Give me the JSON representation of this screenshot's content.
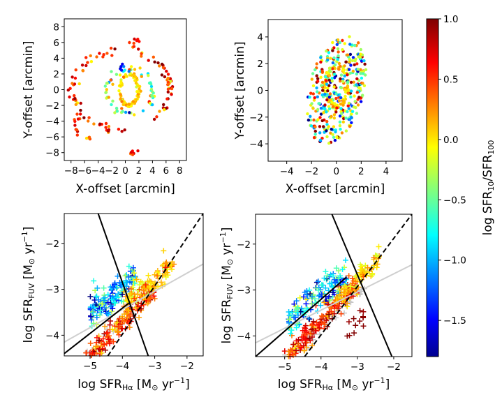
{
  "chart_data": [
    {
      "id": "p1",
      "type": "scatter",
      "xlabel": "X-offset [arcmin]",
      "ylabel": "Y-offset [arcmin]",
      "xlim": [
        -9,
        9
      ],
      "ylim": [
        -9,
        9
      ],
      "xticks": [
        -8,
        -6,
        -4,
        -2,
        0,
        2,
        4,
        6,
        8
      ],
      "yticks": [
        -8,
        -6,
        -4,
        -2,
        0,
        2,
        4,
        6,
        8
      ],
      "color_key": "log SFR10/SFR100",
      "groups": [
        {
          "shape": "ring",
          "cx": 0.6,
          "cy": 0,
          "rx": 1.4,
          "ry": 2.0,
          "n": 80,
          "c": 0.05,
          "cspread": 0.12,
          "jitter": 0.25
        },
        {
          "shape": "ring",
          "cx": 0.8,
          "cy": -0.2,
          "rx": 3.3,
          "ry": 2.8,
          "n": 60,
          "c": -0.4,
          "cspread": 0.55,
          "jitter": 0.5
        },
        {
          "shape": "arc",
          "cx": 0,
          "cy": 0,
          "rx": 7.6,
          "ry": 5.2,
          "a0": 100,
          "a1": 270,
          "n": 55,
          "c": 0.55,
          "cspread": 0.25,
          "jitter": 0.6
        },
        {
          "shape": "arc",
          "cx": 0,
          "cy": 0,
          "rx": 6.6,
          "ry": 4.8,
          "a0": -60,
          "a1": 70,
          "n": 45,
          "c": 0.5,
          "cspread": 0.35,
          "jitter": 0.6
        },
        {
          "shape": "blob",
          "cx": 1.4,
          "cy": 6.1,
          "sx": 0.35,
          "sy": 0.3,
          "n": 8,
          "c": 0.6,
          "cspread": 0.15
        },
        {
          "shape": "blob",
          "cx": 1.2,
          "cy": -8.0,
          "sx": 0.3,
          "sy": 0.15,
          "n": 6,
          "c": 0.6,
          "cspread": 0.1
        },
        {
          "shape": "blob",
          "cx": -7.3,
          "cy": -4.6,
          "sx": 0.3,
          "sy": 0.5,
          "n": 9,
          "c": 0.6,
          "cspread": 0.1
        },
        {
          "shape": "blob",
          "cx": -5.5,
          "cy": -6.2,
          "sx": 0.2,
          "sy": 0.15,
          "n": 4,
          "c": 0.5,
          "cspread": 0.3
        },
        {
          "shape": "blob",
          "cx": -0.3,
          "cy": 2.8,
          "sx": 0.4,
          "sy": 0.3,
          "n": 6,
          "c": -1.3,
          "cspread": 0.2
        }
      ]
    },
    {
      "id": "p2",
      "type": "scatter",
      "xlabel": "X-offset [arcmin]",
      "ylabel": "Y-offset [arcmin]",
      "xlim": [
        -5.5,
        5.3
      ],
      "ylim": [
        -5.3,
        5.3
      ],
      "xticks": [
        -4,
        -2,
        0,
        2,
        4
      ],
      "yticks": [
        -4,
        -2,
        0,
        2,
        4
      ],
      "color_key": "log SFR10/SFR100",
      "groups": [
        {
          "shape": "ring",
          "cx": 0.0,
          "cy": 0.3,
          "rx": 0.9,
          "ry": 1.5,
          "n": 70,
          "c": 0.05,
          "cspread": 0.15,
          "jitter": 0.22
        },
        {
          "shape": "fill",
          "cx": 0.0,
          "cy": 0.0,
          "rx": 2.2,
          "ry": 4.2,
          "rot": -15,
          "n": 380,
          "c": -0.2,
          "cspread": 0.75
        }
      ]
    },
    {
      "id": "p3",
      "type": "scatter",
      "xlabel": "log SFRHα [M⊙ yr−1]",
      "ylabel": "log SFRFUV [M⊙ yr−1]",
      "xlim": [
        -5.8,
        -1.5
      ],
      "ylim": [
        -4.45,
        -1.35
      ],
      "xticks": [
        -5,
        -4,
        -3,
        -2
      ],
      "yticks": [
        -4,
        -3,
        -2
      ],
      "gray_fit": {
        "x": [
          -5.8,
          -1.5
        ],
        "y": [
          -4.15,
          -2.45
        ]
      },
      "dashed_line": {
        "x": [
          -4.45,
          -1.5
        ],
        "y": [
          -4.45,
          -1.35
        ]
      },
      "line_a": {
        "x": [
          -5.8,
          -3.8
        ],
        "y": [
          -4.4,
          -3.3
        ]
      },
      "line_b": {
        "x": [
          -4.75,
          -3.2
        ],
        "y": [
          -1.35,
          -4.45
        ]
      },
      "groups": [
        {
          "shape": "band",
          "x0": -5.3,
          "x1": -3.0,
          "slope": 0.75,
          "x_ref": -3.8,
          "y_ref": -3.55,
          "width": 0.28,
          "n": 170,
          "c": 0.55,
          "cspread": 0.25
        },
        {
          "shape": "band",
          "x0": -5.0,
          "x1": -3.6,
          "slope": 0.6,
          "x_ref": -4.3,
          "y_ref": -3.15,
          "width": 0.35,
          "n": 150,
          "c": -0.9,
          "cspread": 0.45
        },
        {
          "shape": "band",
          "x0": -3.9,
          "x1": -2.4,
          "slope": 0.55,
          "x_ref": -3.2,
          "y_ref": -2.9,
          "width": 0.25,
          "n": 110,
          "c": 0.1,
          "cspread": 0.2
        },
        {
          "shape": "band",
          "x0": -5.5,
          "x1": -2.8,
          "slope": 0.7,
          "x_ref": -4.2,
          "y_ref": -3.85,
          "width": 0.15,
          "n": 40,
          "c": "gray",
          "cspread": 0
        }
      ]
    },
    {
      "id": "p4",
      "type": "scatter",
      "xlabel": "log SFRHα [M⊙ yr−1]",
      "ylabel": "log SFRFUV [M⊙ yr−1]",
      "xlim": [
        -5.8,
        -1.5
      ],
      "ylim": [
        -4.45,
        -1.35
      ],
      "xticks": [
        -5,
        -4,
        -3,
        -2
      ],
      "yticks": [
        -4,
        -3,
        -2
      ],
      "gray_fit": {
        "x": [
          -5.8,
          -1.5
        ],
        "y": [
          -4.15,
          -2.45
        ]
      },
      "dashed_line": {
        "x": [
          -4.45,
          -1.5
        ],
        "y": [
          -4.45,
          -1.35
        ]
      },
      "line_a": {
        "x": [
          -5.8,
          -3.3
        ],
        "y": [
          -4.45,
          -2.72
        ]
      },
      "line_b": {
        "x": [
          -3.7,
          -2.05
        ],
        "y": [
          -1.35,
          -4.45
        ]
      },
      "groups": [
        {
          "shape": "band",
          "x0": -5.0,
          "x1": -3.0,
          "slope": 0.75,
          "x_ref": -4.0,
          "y_ref": -3.7,
          "width": 0.25,
          "n": 170,
          "c": 0.55,
          "cspread": 0.25
        },
        {
          "shape": "band",
          "x0": -4.9,
          "x1": -3.3,
          "slope": 0.6,
          "x_ref": -4.1,
          "y_ref": -3.15,
          "width": 0.35,
          "n": 150,
          "c": -0.9,
          "cspread": 0.45
        },
        {
          "shape": "band",
          "x0": -3.6,
          "x1": -2.4,
          "slope": 0.7,
          "x_ref": -3.0,
          "y_ref": -2.75,
          "width": 0.22,
          "n": 90,
          "c": 0.1,
          "cspread": 0.2
        },
        {
          "shape": "band",
          "x0": -3.3,
          "x1": -2.8,
          "slope": 0.8,
          "x_ref": -3.0,
          "y_ref": -3.7,
          "width": 0.25,
          "n": 12,
          "c": 0.95,
          "cspread": 0.05
        },
        {
          "shape": "band",
          "x0": -5.3,
          "x1": -2.8,
          "slope": 0.7,
          "x_ref": -4.2,
          "y_ref": -3.95,
          "width": 0.15,
          "n": 35,
          "c": "gray",
          "cspread": 0
        }
      ]
    }
  ],
  "colorbar": {
    "label": "log SFR10/SFR100",
    "vmin": -1.8,
    "vmax": 1.0,
    "ticks": [
      1.0,
      0.5,
      0.0,
      -0.5,
      -1.0,
      -1.5
    ],
    "tick_labels": [
      "1.0",
      "0.5",
      "0.0",
      "−0.5",
      "−1.0",
      "−1.5"
    ]
  },
  "colors": {
    "gray_points": "#c8c8c8",
    "gray_line": "#cfcfcf"
  }
}
